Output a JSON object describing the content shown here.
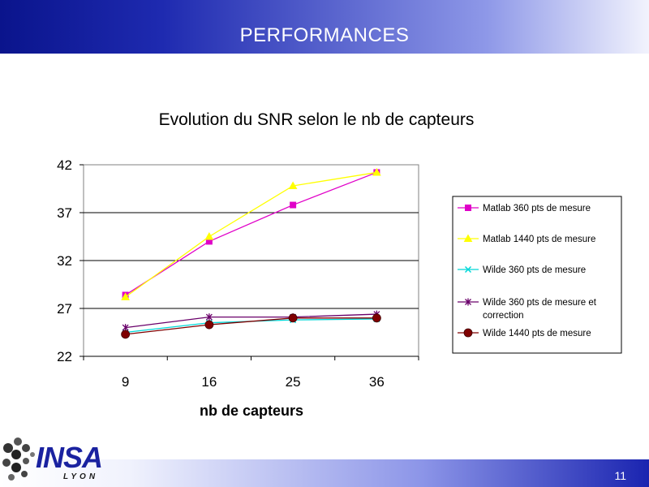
{
  "slide": {
    "title": "PERFORMANCES",
    "number": "11",
    "logo_text": "INSA",
    "logo_sub": "LYON"
  },
  "colors": {
    "header_dark": "#0a148c",
    "footer_dark": "#1a24b0",
    "matlab360": "#e000c8",
    "matlab1440": "#ffff00",
    "wilde360": "#00d8d8",
    "wilde360corr": "#6a006a",
    "wilde1440": "#800000"
  },
  "chart_data": {
    "type": "line",
    "title": "Evolution du SNR selon le nb de capteurs",
    "xlabel": "nb de capteurs",
    "ylabel": "",
    "categories": [
      "9",
      "16",
      "25",
      "36"
    ],
    "ylim": [
      22,
      42
    ],
    "yticks": [
      "42",
      "37",
      "32",
      "27",
      "22"
    ],
    "grid": true,
    "legend_position": "right",
    "series": [
      {
        "name": "Matlab 360 pts de mesure",
        "values": [
          28.4,
          34.0,
          37.8,
          41.2
        ],
        "color": "#e000c8",
        "marker": "square"
      },
      {
        "name": "Matlab 1440 pts de mesure",
        "values": [
          28.2,
          34.5,
          39.8,
          41.2
        ],
        "color": "#ffff00",
        "marker": "triangle"
      },
      {
        "name": "Wilde 360 pts de mesure",
        "values": [
          24.5,
          25.5,
          25.8,
          25.9
        ],
        "color": "#00d8d8",
        "marker": "x"
      },
      {
        "name": "Wilde 360 pts de mesure et correction",
        "values": [
          25.0,
          26.1,
          26.1,
          26.4
        ],
        "color": "#6a006a",
        "marker": "star"
      },
      {
        "name": "Wilde 1440 pts de mesure",
        "values": [
          24.3,
          25.3,
          26.0,
          26.0
        ],
        "color": "#800000",
        "marker": "circle"
      }
    ]
  }
}
